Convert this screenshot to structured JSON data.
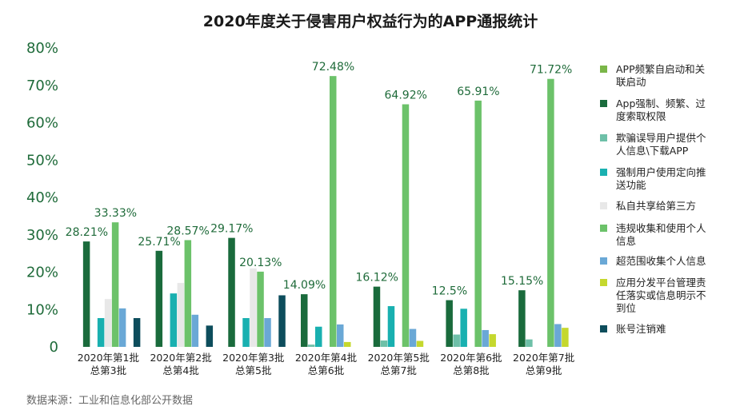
{
  "chart_data": {
    "type": "bar",
    "title": "2020年度关于侵害用户权益行为的APP通报统计",
    "source": "数据来源：工业和信息化部公开数据",
    "ylim": [
      0,
      80
    ],
    "yticks": [
      "0",
      "10%",
      "20%",
      "30%",
      "40%",
      "50%",
      "60%",
      "70%",
      "80%"
    ],
    "grid": false,
    "legend_position": "right",
    "categories": [
      [
        "2020年第1批",
        "总第3批"
      ],
      [
        "2020年第2批",
        "总第4批"
      ],
      [
        "2020年第3批",
        "总第5批"
      ],
      [
        "2020年第4批",
        "总第6批"
      ],
      [
        "2020年第5批",
        "总第7批"
      ],
      [
        "2020年第6批",
        "总第8批"
      ],
      [
        "2020年第7批",
        "总第9批"
      ]
    ],
    "series": [
      {
        "name": [
          "APP频繁自启动和关",
          "联启动"
        ],
        "color": "#7ab648",
        "values": [
          0,
          0,
          0,
          0,
          0,
          0,
          0
        ]
      },
      {
        "name": [
          "App强制、频繁、过",
          "度索取权限"
        ],
        "color": "#1a6b3c",
        "values": [
          28.21,
          25.71,
          29.17,
          14.09,
          16.12,
          12.5,
          15.15
        ]
      },
      {
        "name": [
          "欺骗误导用户提供个",
          "人信息\\下载APP"
        ],
        "color": "#6ec0a8",
        "values": [
          0,
          0,
          0,
          0.6,
          1.7,
          3.3,
          2.0
        ]
      },
      {
        "name": [
          "强制用户使用定向推",
          "送功能"
        ],
        "color": "#19b0b0",
        "values": [
          7.7,
          14.3,
          7.7,
          5.4,
          10.9,
          10.2,
          0
        ]
      },
      {
        "name": [
          "私自共享给第三方"
        ],
        "color": "#e8e8e8",
        "values": [
          12.8,
          17.1,
          21.0,
          0,
          0,
          0,
          0
        ]
      },
      {
        "name": [
          "违规收集和使用个人",
          "信息"
        ],
        "color": "#6cc26a",
        "values": [
          33.33,
          28.57,
          20.13,
          72.48,
          64.92,
          65.91,
          71.72
        ]
      },
      {
        "name": [
          "超范围收集个人信息"
        ],
        "color": "#6aa8d6",
        "values": [
          10.3,
          8.6,
          7.7,
          6.0,
          4.8,
          4.5,
          6.1
        ]
      },
      {
        "name": [
          "应用分发平台管理责",
          "任落实或信息明示不",
          "到位"
        ],
        "color": "#c5d82e",
        "values": [
          0,
          0,
          0,
          1.3,
          1.6,
          3.4,
          5.1
        ]
      },
      {
        "name": [
          "账号注销难"
        ],
        "color": "#0d4d5c",
        "values": [
          7.7,
          5.7,
          13.8,
          0,
          0,
          0,
          0
        ]
      }
    ],
    "data_labels": [
      {
        "category": 0,
        "series": 1,
        "text": "28.21%"
      },
      {
        "category": 0,
        "series": 5,
        "text": "33.33%"
      },
      {
        "category": 1,
        "series": 1,
        "text": "25.71%"
      },
      {
        "category": 1,
        "series": 5,
        "text": "28.57%"
      },
      {
        "category": 2,
        "series": 1,
        "text": "29.17%"
      },
      {
        "category": 2,
        "series": 5,
        "text": "20.13%"
      },
      {
        "category": 3,
        "series": 1,
        "text": "14.09%"
      },
      {
        "category": 3,
        "series": 5,
        "text": "72.48%"
      },
      {
        "category": 4,
        "series": 1,
        "text": "16.12%"
      },
      {
        "category": 4,
        "series": 5,
        "text": "64.92%"
      },
      {
        "category": 5,
        "series": 1,
        "text": "12.5%"
      },
      {
        "category": 5,
        "series": 5,
        "text": "65.91%"
      },
      {
        "category": 6,
        "series": 1,
        "text": "15.15%"
      },
      {
        "category": 6,
        "series": 5,
        "text": "71.72%"
      }
    ]
  }
}
